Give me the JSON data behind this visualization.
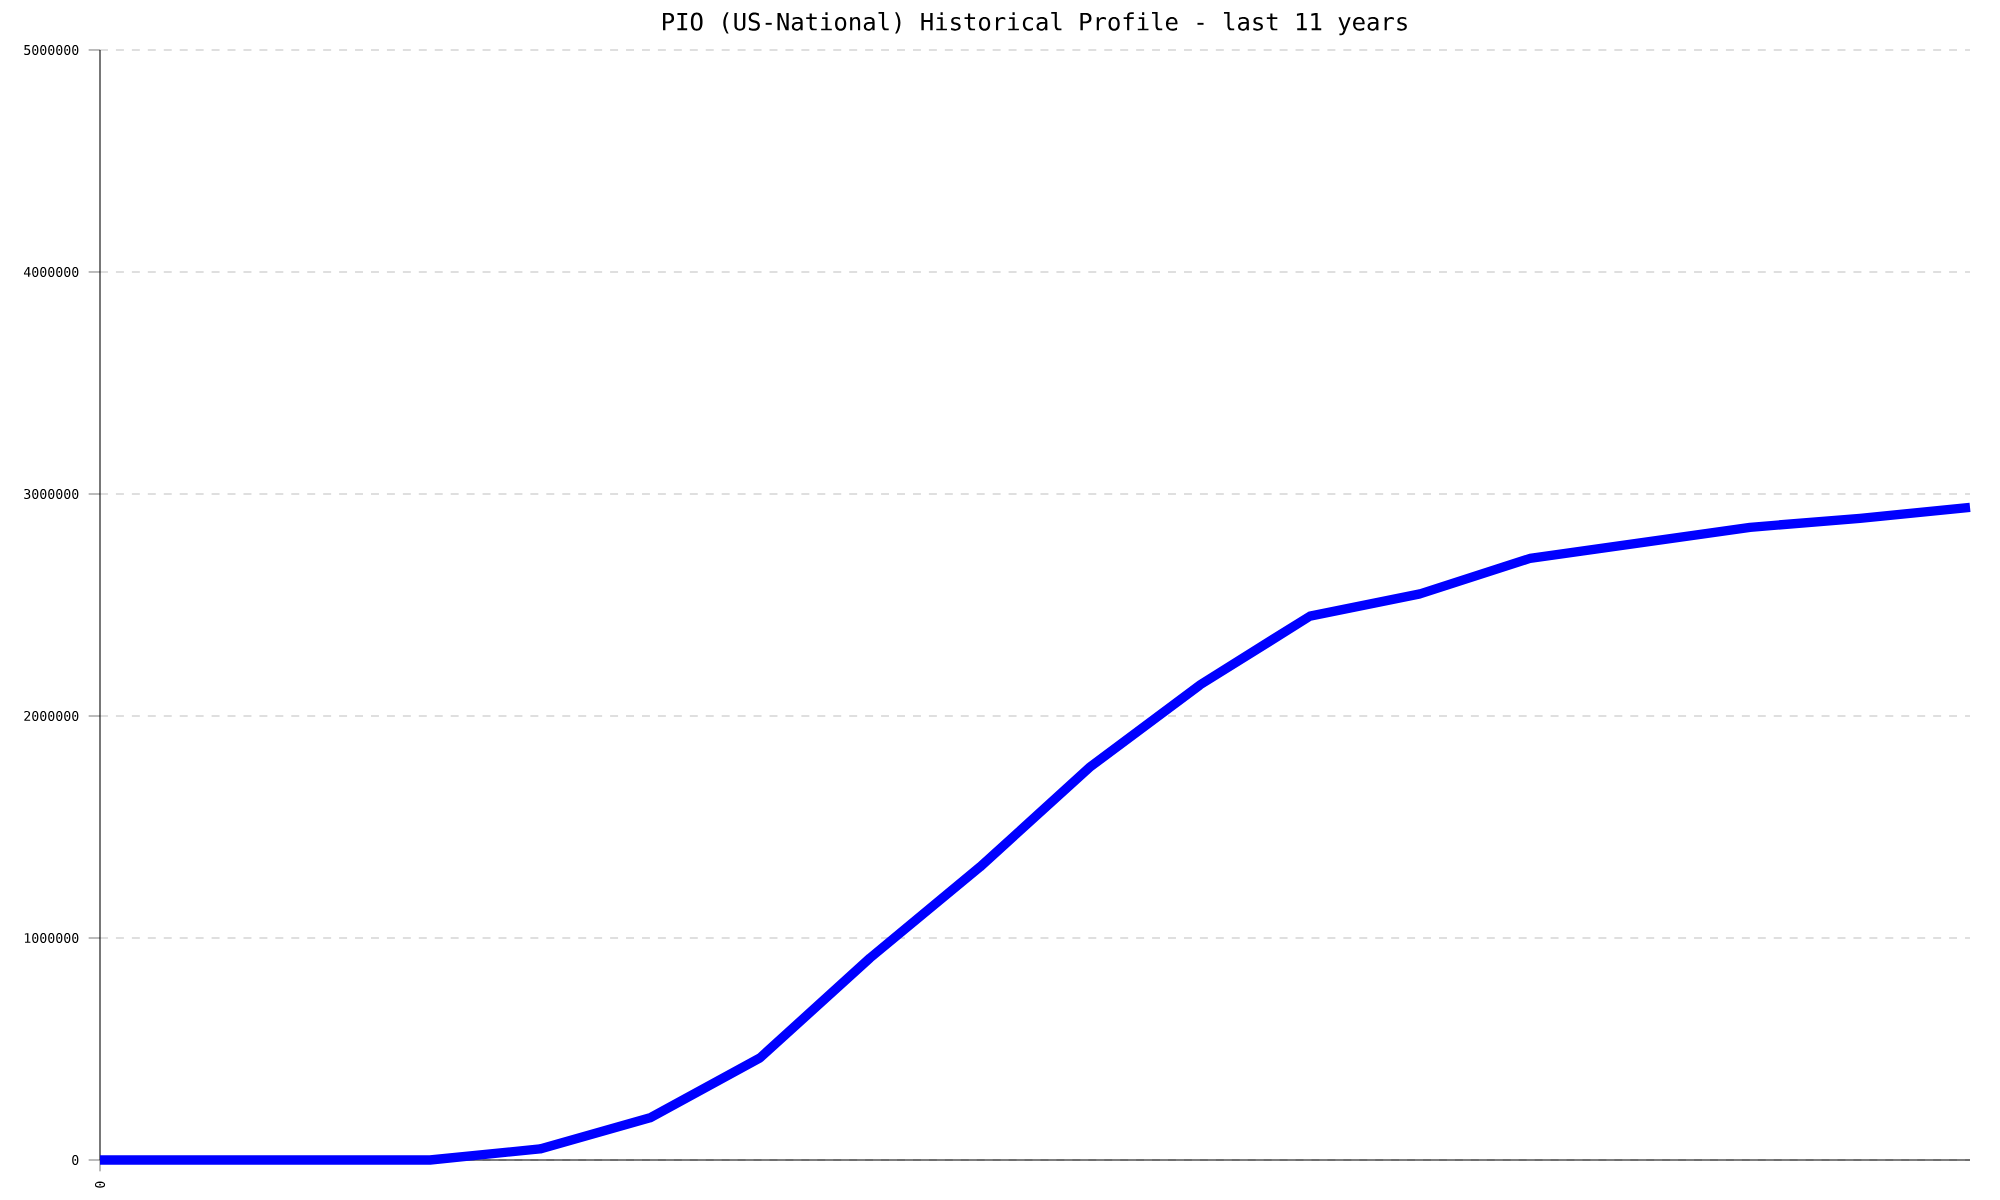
{
  "chart_data": {
    "type": "line",
    "title": "PIO (US-National) Historical Profile - last 11 years",
    "categories": [
      "0",
      null,
      null,
      null,
      null,
      null,
      null,
      null,
      null,
      null,
      null,
      null,
      null,
      null,
      null,
      null,
      null,
      null
    ],
    "series": [
      {
        "color": "#0000ff",
        "values": [
          0,
          0,
          0,
          0,
          50000,
          190000,
          460000,
          910000,
          1320000,
          1770000,
          2140000,
          2450000,
          2550000,
          2710000,
          2780000,
          2850000,
          2890000,
          2940000
        ]
      }
    ],
    "ylim": [
      0,
      5000000
    ],
    "yticks": [
      0,
      1000000,
      2000000,
      3000000,
      4000000,
      5000000
    ],
    "grid": "y",
    "marker": "none",
    "line_style": "solid"
  }
}
